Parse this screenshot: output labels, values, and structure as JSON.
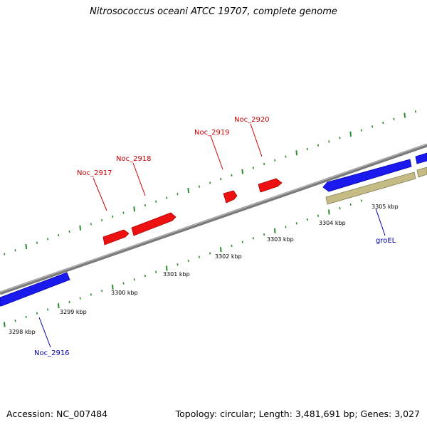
{
  "title": "Nitrosococcus oceani ATCC 19707, complete genome",
  "footer": {
    "accession": "Accession: NC_007484",
    "summary": "Topology: circular; Length: 3,481,691 bp; Genes: 3,027"
  },
  "colors": {
    "backbone": "#808080",
    "tick": "#2e8b2e",
    "forward_gene": "#ff0000",
    "reverse_gene": "#0000ff",
    "cds_reverse": "#b8b07a",
    "forward_label": "#cc0000",
    "reverse_label": "#0000aa"
  },
  "scale_labels": [
    "3298 kbp",
    "3299 kbp",
    "3300 kbp",
    "3301 kbp",
    "3302 kbp",
    "3303 kbp",
    "3304 kbp",
    "3305 kbp"
  ],
  "genes": {
    "forward": [
      "Noc_2917",
      "Noc_2918",
      "Noc_2919",
      "Noc_2920"
    ],
    "reverse": [
      "Noc_2916",
      "groEL"
    ]
  }
}
